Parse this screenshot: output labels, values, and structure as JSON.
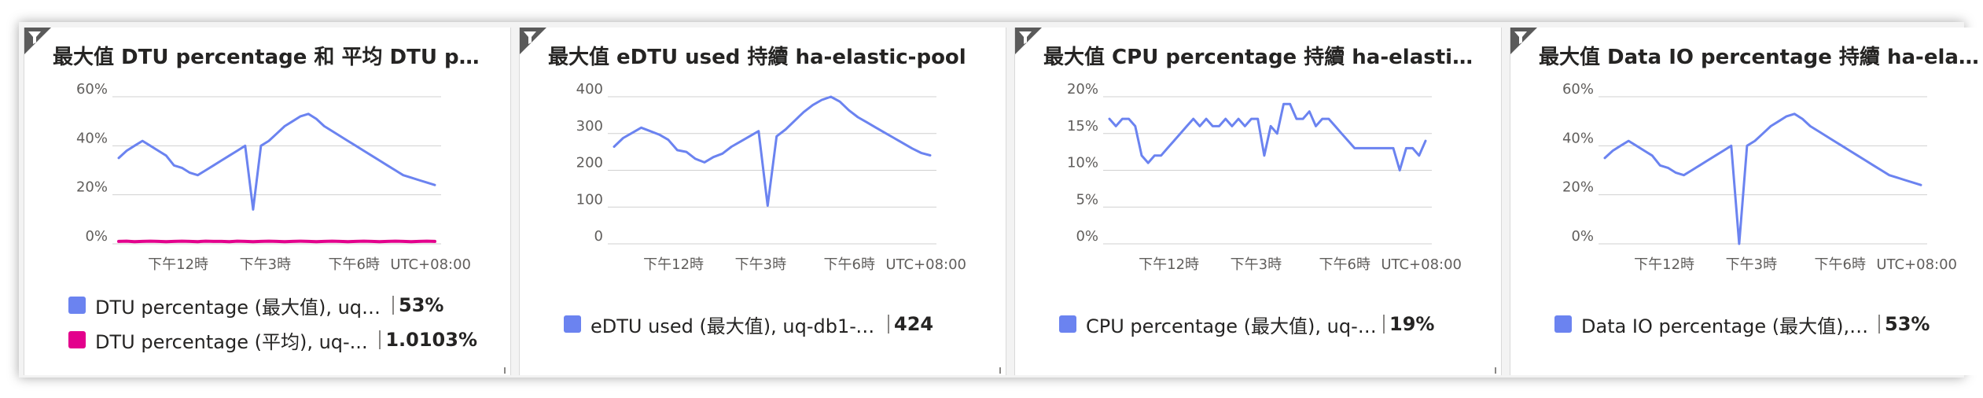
{
  "tiles": [
    {
      "title": "最大值 DTU percentage 和 平均 DTU percen...",
      "filter_icon": "filter-icon",
      "legend": [
        {
          "label": "DTU percentage (最大值), uq-d...",
          "value": "53%",
          "color": "#6b83f0"
        },
        {
          "label": "DTU percentage (平均), uq-...",
          "value": "1.0103%",
          "color": "#e3008c"
        }
      ]
    },
    {
      "title": "最大值 eDTU used 持續 ha-elastic-pool",
      "filter_icon": "filter-icon",
      "legend": [
        {
          "label": "eDTU used (最大值), uq-db1-v...",
          "value": "424",
          "color": "#6b83f0"
        }
      ]
    },
    {
      "title": "最大值 CPU percentage 持續 ha-elastic-pool",
      "filter_icon": "filter-icon",
      "legend": [
        {
          "label": "CPU percentage (最大值), uq-d...",
          "value": "19%",
          "color": "#6b83f0"
        }
      ]
    },
    {
      "title": "最大值 Data IO percentage 持續 ha-elastic-...",
      "filter_icon": "filter-icon",
      "legend": [
        {
          "label": "Data IO percentage (最大值), u...",
          "value": "53%",
          "color": "#6b83f0"
        }
      ]
    }
  ],
  "chart_data": [
    {
      "type": "line",
      "x_tick_labels": [
        "下午12時",
        "下午3時",
        "下午6時"
      ],
      "timezone_label": "UTC+08:00",
      "y_tick_labels": [
        "60%",
        "40%",
        "20%",
        "0%"
      ],
      "ylim": [
        0,
        60
      ],
      "grid": true,
      "x": [
        0,
        1,
        2,
        3,
        4,
        5,
        6,
        7,
        8,
        9,
        10,
        11,
        12,
        13,
        14,
        15,
        16,
        17,
        18,
        19,
        20,
        21,
        22,
        23,
        24,
        25,
        26,
        27,
        28,
        29,
        30,
        31,
        32,
        33,
        34,
        35,
        36,
        37,
        38,
        39,
        40
      ],
      "series": [
        {
          "name": "DTU percentage (最大值)",
          "color": "#6b83f0",
          "values": [
            35,
            38,
            40,
            42,
            40,
            38,
            36,
            32,
            31,
            29,
            28,
            30,
            32,
            34,
            36,
            38,
            40,
            14,
            40,
            42,
            45,
            48,
            50,
            52,
            53,
            51,
            48,
            46,
            44,
            42,
            40,
            38,
            36,
            34,
            32,
            30,
            28,
            27,
            26,
            25,
            24
          ]
        },
        {
          "name": "DTU percentage (平均)",
          "color": "#e3008c",
          "values": [
            1.0,
            1.1,
            0.9,
            1.0,
            1.1,
            1.0,
            0.9,
            1.0,
            1.1,
            1.0,
            0.9,
            1.1,
            1.0,
            1.0,
            0.9,
            1.1,
            1.0,
            0.9,
            1.0,
            1.1,
            1.0,
            0.9,
            1.0,
            1.1,
            1.0,
            0.9,
            1.0,
            1.1,
            1.0,
            0.9,
            1.0,
            1.1,
            1.0,
            0.9,
            1.0,
            1.1,
            1.0,
            0.9,
            1.0,
            1.1,
            1.0
          ]
        }
      ]
    },
    {
      "type": "line",
      "x_tick_labels": [
        "下午12時",
        "下午3時",
        "下午6時"
      ],
      "timezone_label": "UTC+08:00",
      "y_tick_labels": [
        "400",
        "300",
        "200",
        "100",
        "0"
      ],
      "ylim": [
        0,
        424
      ],
      "grid": true,
      "x": [
        0,
        1,
        2,
        3,
        4,
        5,
        6,
        7,
        8,
        9,
        10,
        11,
        12,
        13,
        14,
        15,
        16,
        17,
        18,
        19,
        20,
        21,
        22,
        23,
        24,
        25,
        26,
        27,
        28,
        29,
        30,
        31,
        32,
        33,
        34,
        35
      ],
      "series": [
        {
          "name": "eDTU used (最大值)",
          "color": "#6b83f0",
          "values": [
            280,
            305,
            320,
            335,
            325,
            315,
            300,
            270,
            265,
            245,
            235,
            250,
            260,
            280,
            295,
            310,
            325,
            110,
            310,
            330,
            355,
            380,
            400,
            415,
            424,
            410,
            385,
            365,
            350,
            335,
            320,
            305,
            290,
            275,
            262,
            255
          ]
        }
      ]
    },
    {
      "type": "line",
      "x_tick_labels": [
        "下午12時",
        "下午3時",
        "下午6時"
      ],
      "timezone_label": "UTC+08:00",
      "y_tick_labels": [
        "20%",
        "15%",
        "10%",
        "5%",
        "0%"
      ],
      "ylim": [
        0,
        20
      ],
      "grid": true,
      "x": [
        0,
        1,
        2,
        3,
        4,
        5,
        6,
        7,
        8,
        9,
        10,
        11,
        12,
        13,
        14,
        15,
        16,
        17,
        18,
        19,
        20,
        21,
        22,
        23,
        24,
        25,
        26,
        27,
        28,
        29,
        30,
        31,
        32,
        33,
        34,
        35,
        36,
        37,
        38,
        39,
        40,
        41,
        42,
        43,
        44,
        45,
        46,
        47,
        48,
        49
      ],
      "series": [
        {
          "name": "CPU percentage (最大值)",
          "color": "#6b83f0",
          "values": [
            17,
            16,
            17,
            17,
            16,
            12,
            11,
            12,
            12,
            13,
            14,
            15,
            16,
            17,
            16,
            17,
            16,
            16,
            17,
            16,
            17,
            16,
            17,
            17,
            12,
            16,
            15,
            19,
            19,
            17,
            17,
            18,
            16,
            17,
            17,
            16,
            15,
            14,
            13,
            13,
            13,
            13,
            13,
            13,
            13,
            10,
            13,
            13,
            12,
            14
          ]
        }
      ]
    },
    {
      "type": "line",
      "x_tick_labels": [
        "下午12時",
        "下午3時",
        "下午6時"
      ],
      "timezone_label": "UTC+08:00",
      "y_tick_labels": [
        "60%",
        "40%",
        "20%",
        "0%"
      ],
      "ylim": [
        0,
        60
      ],
      "grid": true,
      "x": [
        0,
        1,
        2,
        3,
        4,
        5,
        6,
        7,
        8,
        9,
        10,
        11,
        12,
        13,
        14,
        15,
        16,
        17,
        18,
        19,
        20,
        21,
        22,
        23,
        24,
        25,
        26,
        27,
        28,
        29,
        30,
        31,
        32,
        33,
        34,
        35,
        36,
        37,
        38,
        39,
        40
      ],
      "series": [
        {
          "name": "Data IO percentage (最大值)",
          "color": "#6b83f0",
          "values": [
            35,
            38,
            40,
            42,
            40,
            38,
            36,
            32,
            31,
            29,
            28,
            30,
            32,
            34,
            36,
            38,
            40,
            0,
            40,
            42,
            45,
            48,
            50,
            52,
            53,
            51,
            48,
            46,
            44,
            42,
            40,
            38,
            36,
            34,
            32,
            30,
            28,
            27,
            26,
            25,
            24
          ]
        }
      ]
    }
  ]
}
